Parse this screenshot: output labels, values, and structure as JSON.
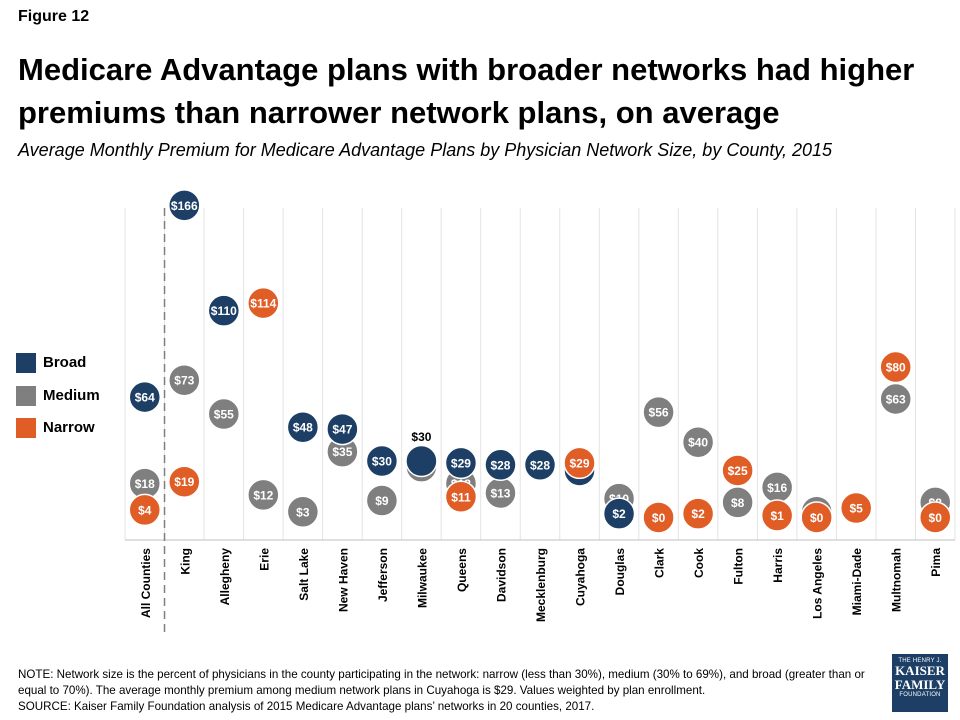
{
  "figure_label": "Figure 12",
  "title": "Medicare Advantage plans with broader networks had higher premiums than narrower network plans, on average",
  "subtitle": "Average Monthly Premium for Medicare Advantage Plans by Physician Network Size, by County, 2015",
  "note": "NOTE: Network size is the percent of physicians in the county participating in the network: narrow (less than 30%), medium (30% to 69%), and broad (greater than or equal to 70%). The average monthly premium among medium network plans in Cuyahoga is $29. Values weighted by plan enrollment.",
  "source": "SOURCE: Kaiser Family Foundation analysis of 2015 Medicare Advantage plans’ networks in 20 counties, 2017.",
  "logo": {
    "top": "THE HENRY J.",
    "line1": "KAISER",
    "line2": "FAMILY",
    "bottom": "FOUNDATION"
  },
  "colors": {
    "Broad": "#1d3f66",
    "Medium": "#7f7f7f",
    "Narrow": "#e05d26"
  },
  "chart_data": {
    "type": "scatter",
    "categories": [
      "All Counties",
      "King",
      "Allegheny",
      "Erie",
      "Salt Lake",
      "New Haven",
      "Jefferson",
      "Milwaukee",
      "Queens",
      "Davidson",
      "Mecklenburg",
      "Cuyahoga",
      "Douglas",
      "Clark",
      "Cook",
      "Fulton",
      "Harris",
      "Los Angeles",
      "Miami-Dade",
      "Multnomah",
      "Pima"
    ],
    "series": [
      {
        "name": "Broad",
        "values": [
          64,
          166,
          110,
          null,
          48,
          47,
          30,
          30,
          29,
          28,
          28,
          25,
          2,
          null,
          null,
          null,
          null,
          null,
          null,
          null,
          null
        ],
        "labels": [
          "$64",
          "$166",
          "$110",
          "",
          "$48",
          "$47",
          "$30",
          "$30",
          "$29",
          "$28",
          "$28",
          "$25",
          "$2",
          "",
          "",
          "",
          "",
          "",
          "",
          "",
          ""
        ]
      },
      {
        "name": "Medium",
        "values": [
          18,
          73,
          55,
          12,
          3,
          35,
          9,
          27,
          18,
          13,
          null,
          null,
          10,
          56,
          40,
          8,
          16,
          3,
          null,
          63,
          8
        ],
        "labels": [
          "$18",
          "$73",
          "$55",
          "$12",
          "$3",
          "$35",
          "$9",
          "$27",
          "$18",
          "$13",
          "",
          "",
          "$10",
          "$56",
          "$40",
          "$8",
          "$16",
          "$3",
          "",
          "$63",
          "$8"
        ]
      },
      {
        "name": "Narrow",
        "values": [
          4,
          19,
          null,
          114,
          null,
          null,
          null,
          null,
          11,
          null,
          null,
          29,
          null,
          0,
          2,
          25,
          1,
          0,
          5,
          80,
          0
        ],
        "labels": [
          "$4",
          "$19",
          "",
          "$114",
          "",
          "",
          "",
          "",
          "$11",
          "",
          "",
          "$29",
          "",
          "$0",
          "$2",
          "$25",
          "$1",
          "$0",
          "$5",
          "$80",
          "$0"
        ]
      }
    ],
    "draw_order": [
      "Medium",
      "Broad",
      "Narrow"
    ],
    "ylim": [
      -12,
      172
    ],
    "grid": true,
    "legend": "left"
  }
}
